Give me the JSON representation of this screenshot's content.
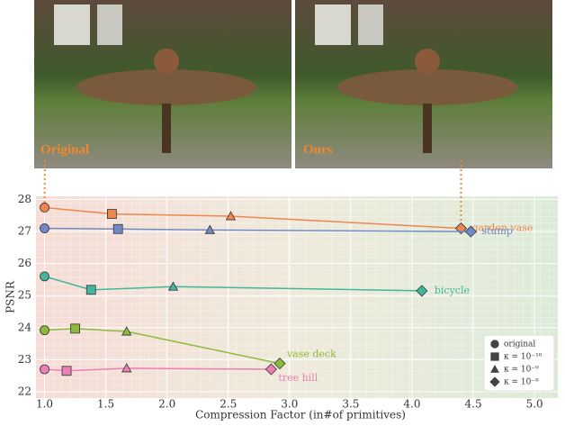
{
  "images": [
    {
      "label": "Original"
    },
    {
      "label": "Ours"
    }
  ],
  "chart_data": {
    "type": "line",
    "x_label": "Compression Factor  (in#of primitives)",
    "y_label": "PSNR",
    "markers": [
      "circle",
      "square",
      "triangle",
      "diamond"
    ],
    "marker_legend": [
      "original",
      "κ = 10⁻¹⁰",
      "κ = 10⁻⁹",
      "κ = 10⁻⁸"
    ],
    "series": [
      {
        "name": "garden vase",
        "color": "#ee8650",
        "x": [
          1.0,
          1.55,
          2.52,
          4.4
        ],
        "values": [
          27.75,
          27.55,
          27.48,
          27.1
        ]
      },
      {
        "name": "stump",
        "color": "#6f8ac6",
        "x": [
          1.0,
          1.6,
          2.35,
          4.48
        ],
        "values": [
          27.1,
          27.08,
          27.05,
          27.0
        ]
      },
      {
        "name": "bicycle",
        "color": "#43b69c",
        "x": [
          1.0,
          1.38,
          2.05,
          4.08
        ],
        "values": [
          25.6,
          25.18,
          25.28,
          25.15
        ]
      },
      {
        "name": "vase deck",
        "color": "#8cba3a",
        "x": [
          1.0,
          1.25,
          1.67,
          2.92
        ],
        "values": [
          23.92,
          23.97,
          23.88,
          22.88
        ]
      },
      {
        "name": "tree hill",
        "color": "#ea80b6",
        "x": [
          1.0,
          1.18,
          1.67,
          2.85
        ],
        "values": [
          22.7,
          22.65,
          22.73,
          22.7
        ]
      }
    ],
    "xlim": [
      0.93,
      5.19
    ],
    "ylim": [
      21.8,
      28.1
    ],
    "xticks": [
      {
        "value": 1,
        "label": "1.0"
      },
      1.5,
      {
        "value": 2,
        "label": "2.0"
      },
      2.5,
      {
        "value": 3,
        "label": "3.0"
      },
      3.5,
      {
        "value": 4,
        "label": "4.0"
      },
      4.5,
      {
        "value": 5,
        "label": "5.0"
      }
    ],
    "yticks": [
      22,
      23,
      24,
      25,
      26,
      27,
      28
    ],
    "grid": true
  }
}
